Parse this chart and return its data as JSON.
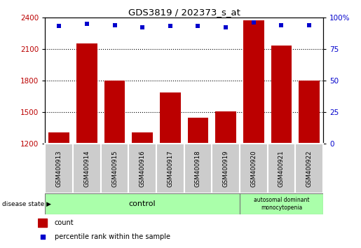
{
  "title": "GDS3819 / 202373_s_at",
  "samples": [
    "GSM400913",
    "GSM400914",
    "GSM400915",
    "GSM400916",
    "GSM400917",
    "GSM400918",
    "GSM400919",
    "GSM400920",
    "GSM400921",
    "GSM400922"
  ],
  "counts": [
    1310,
    2150,
    1800,
    1310,
    1690,
    1450,
    1510,
    2370,
    2130,
    1800
  ],
  "percentiles": [
    93,
    95,
    94,
    92,
    93,
    93,
    92,
    96,
    94,
    94
  ],
  "ylim_left": [
    1200,
    2400
  ],
  "ylim_right": [
    0,
    100
  ],
  "yticks_left": [
    1200,
    1500,
    1800,
    2100,
    2400
  ],
  "yticks_right": [
    0,
    25,
    50,
    75,
    100
  ],
  "bar_color": "#bb0000",
  "dot_color": "#0000cc",
  "control_color": "#aaffaa",
  "disease_color": "#aaffaa",
  "label_bg_color": "#cccccc",
  "n_control": 7,
  "disease_label": "autosomal dominant\nmonocytopenia",
  "control_label": "control",
  "legend_count_label": "count",
  "legend_pct_label": "percentile rank within the sample",
  "disease_state_label": "disease state",
  "dotted_lines": [
    1500,
    1800,
    2100
  ]
}
